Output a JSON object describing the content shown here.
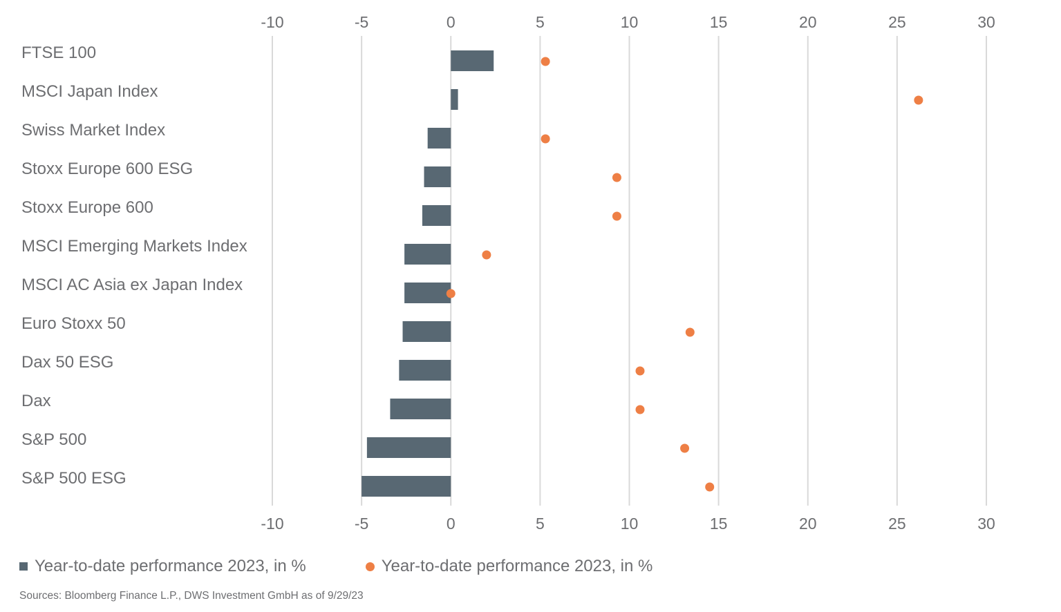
{
  "chart_data": {
    "type": "bar",
    "orientation": "horizontal",
    "categories": [
      "FTSE 100",
      "MSCI Japan Index",
      "Swiss Market Index",
      "Stoxx Europe 600 ESG",
      "Stoxx Europe 600",
      "MSCI Emerging Markets Index",
      "MSCI AC Asia ex Japan Index",
      "Euro Stoxx 50",
      "Dax 50 ESG",
      "Dax",
      "S&P 500",
      "S&P 500 ESG"
    ],
    "series": [
      {
        "name": "Year-to-date performance 2023, in %",
        "kind": "bar",
        "color": "#586873",
        "values": [
          2.4,
          0.4,
          -1.3,
          -1.5,
          -1.6,
          -2.6,
          -2.6,
          -2.7,
          -2.9,
          -3.4,
          -4.7,
          -5.0
        ]
      },
      {
        "name": "Year-to-date performance 2023, in %",
        "kind": "dot",
        "color": "#ee7f45",
        "values": [
          5.3,
          26.2,
          5.3,
          9.3,
          9.3,
          2.0,
          0.0,
          13.4,
          10.6,
          10.6,
          13.1,
          14.5
        ]
      }
    ],
    "xlim": [
      -10,
      30
    ],
    "xticks": [
      "-10",
      "-5",
      "0",
      "5",
      "10",
      "15",
      "20",
      "25",
      "30"
    ],
    "grid": "vertical",
    "legend_position": "bottom-left"
  },
  "legend": {
    "bar_label": "Year-to-date performance 2023, in %",
    "dot_label": "Year-to-date performance 2023, in %"
  },
  "source": "Sources: Bloomberg Finance L.P., DWS Investment GmbH as of 9/29/23"
}
